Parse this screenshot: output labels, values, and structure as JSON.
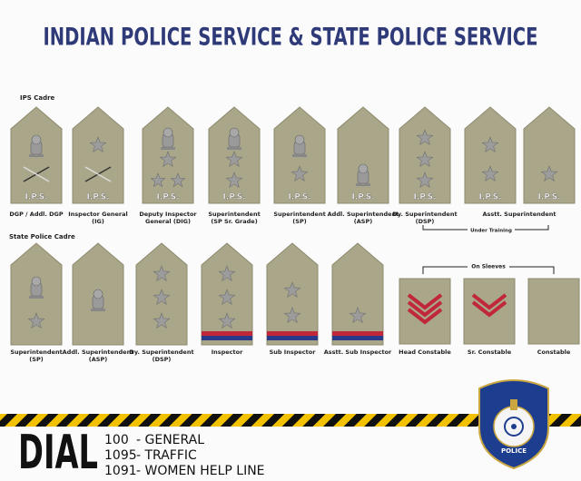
{
  "title": "INDIAN POLICE SERVICE & STATE POLICE SERVICE",
  "insignia_text": "I.P.S.",
  "ips": {
    "heading": "IPS Cadre",
    "ranks": [
      [
        "DGP / Addl. DGP"
      ],
      [
        "Inspector General",
        "(IG)"
      ],
      [
        "Deputy Inspector",
        "General (DIG)"
      ],
      [
        "Superintendent",
        "(SP Sr. Grade)"
      ],
      [
        "Superintendent",
        "(SP)"
      ],
      [
        "Addl. Superintendent",
        "(ASP)"
      ],
      [
        "Dy. Superintendent",
        "(DSP)"
      ],
      [
        "Asstt. Superintendent"
      ]
    ],
    "bracket": "Under Training"
  },
  "state": {
    "heading": "State Police Cadre",
    "ranks": [
      [
        "Superintendent",
        "(SP)"
      ],
      [
        "Addl. Superintendent",
        "(ASP)"
      ],
      [
        "Dy. Superintendent",
        "(DSP)"
      ],
      [
        "Inspector"
      ],
      [
        "Sub Inspector"
      ],
      [
        "Asstt. Sub Inspector"
      ],
      [
        "Head Constable"
      ],
      [
        "Sr. Constable"
      ],
      [
        "Constable"
      ]
    ],
    "bracket": "On Sleeves"
  },
  "dial": {
    "word": "DIAL",
    "lines": [
      {
        "number": "100",
        "label": "- GENERAL"
      },
      {
        "number": "1095",
        "label": "- TRAFFIC"
      },
      {
        "number": "1091",
        "label": "- WOMEN HELP LINE"
      }
    ]
  },
  "badge": {
    "text": "POLICE"
  }
}
